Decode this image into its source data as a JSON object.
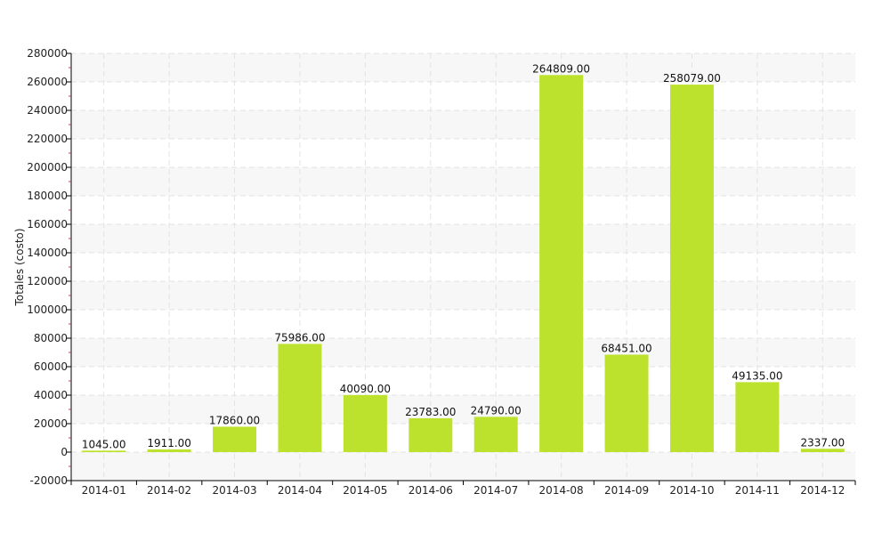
{
  "chart_data": {
    "type": "bar",
    "title": "",
    "xlabel": "",
    "ylabel": "Totales (costo)",
    "categories": [
      "2014-01",
      "2014-02",
      "2014-03",
      "2014-04",
      "2014-05",
      "2014-06",
      "2014-07",
      "2014-08",
      "2014-09",
      "2014-10",
      "2014-11",
      "2014-12"
    ],
    "values": [
      1045.0,
      1911.0,
      17860.0,
      75986.0,
      40090.0,
      23783.0,
      24790.0,
      264809.0,
      68451.0,
      258079.0,
      49135.0,
      2337.0
    ],
    "data_labels": [
      "1045.00",
      "1911.00",
      "17860.00",
      "75986.00",
      "40090.00",
      "23783.00",
      "24790.00",
      "264809.00",
      "68451.00",
      "258079.00",
      "49135.00",
      "2337.00"
    ],
    "ylim": [
      -20000,
      280000
    ],
    "yticks": [
      -20000,
      0,
      20000,
      40000,
      60000,
      80000,
      100000,
      120000,
      140000,
      160000,
      180000,
      200000,
      220000,
      240000,
      260000,
      280000
    ],
    "grid": true,
    "bar_color": "#bde22e",
    "band_color": "#f7f7f7",
    "grid_color": "#e3e3e3",
    "axis_color": "#000000",
    "minor_tick_color": "#cc3366"
  }
}
